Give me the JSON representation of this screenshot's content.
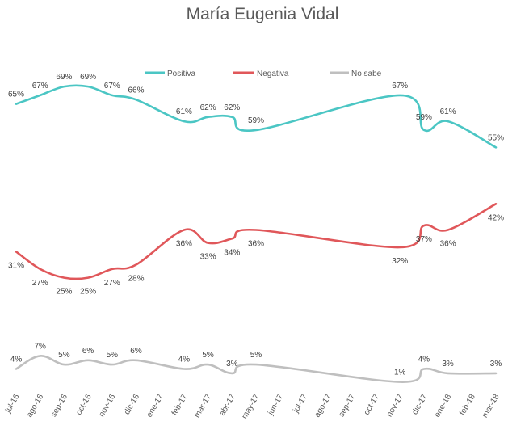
{
  "chart_data": {
    "type": "line",
    "title": "María Eugenia Vidal",
    "categories": [
      "jul-16",
      "ago-16",
      "sep-16",
      "oct-16",
      "nov-16",
      "dic-16",
      "ene-17",
      "feb-17",
      "mar-17",
      "abr-17",
      "may-17",
      "jun-17",
      "jul-17",
      "ago-17",
      "sep-17",
      "oct-17",
      "nov-17",
      "dic-17",
      "ene-18",
      "feb-18",
      "mar-18"
    ],
    "series": [
      {
        "name": "Positiva",
        "color": "#4bc6c4",
        "values": [
          65,
          67,
          69,
          69,
          67,
          66,
          null,
          61,
          62,
          62,
          59,
          null,
          null,
          null,
          null,
          null,
          67,
          59,
          61,
          null,
          55
        ],
        "labels": [
          "65%",
          "67%",
          "69%",
          "69%",
          "67%",
          "66%",
          "",
          "61%",
          "62%",
          "62%",
          "59%",
          "",
          "",
          "",
          "",
          "",
          "67%",
          "59%",
          "61%",
          "",
          "55%"
        ]
      },
      {
        "name": "Negativa",
        "color": "#e0575a",
        "values": [
          31,
          27,
          25,
          25,
          27,
          28,
          null,
          36,
          33,
          34,
          36,
          null,
          null,
          null,
          null,
          null,
          32,
          37,
          36,
          null,
          42
        ],
        "labels": [
          "31%",
          "27%",
          "25%",
          "25%",
          "27%",
          "28%",
          "",
          "36%",
          "33%",
          "34%",
          "36%",
          "",
          "",
          "",
          "",
          "",
          "32%",
          "37%",
          "36%",
          "",
          "42%"
        ]
      },
      {
        "name": "No sabe",
        "color": "#bfbfbf",
        "values": [
          4,
          7,
          5,
          6,
          5,
          6,
          null,
          4,
          5,
          3,
          5,
          null,
          null,
          null,
          null,
          null,
          1,
          4,
          3,
          null,
          3
        ],
        "labels": [
          "4%",
          "7%",
          "5%",
          "6%",
          "5%",
          "6%",
          "",
          "4%",
          "5%",
          "3%",
          "5%",
          "",
          "",
          "",
          "",
          "",
          "1%",
          "4%",
          "3%",
          "",
          "3%"
        ]
      }
    ],
    "legend_position": "top-center",
    "ylim": [
      0,
      80
    ],
    "grid": false
  }
}
